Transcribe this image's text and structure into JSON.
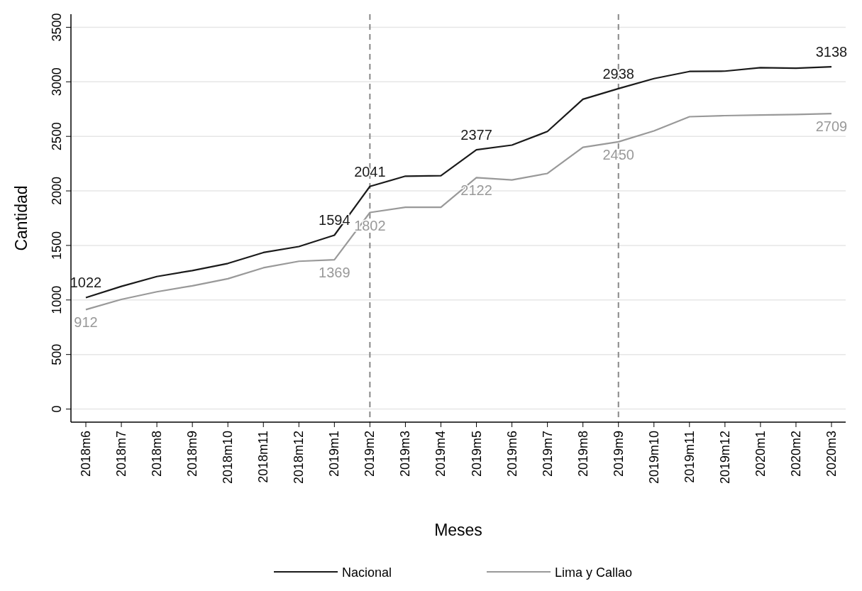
{
  "chart_data": {
    "type": "line",
    "xlabel": "Meses",
    "ylabel": "Cantidad",
    "categories": [
      "2018m6",
      "2018m7",
      "2018m8",
      "2018m9",
      "2018m10",
      "2018m11",
      "2018m12",
      "2019m1",
      "2019m2",
      "2019m3",
      "2019m4",
      "2019m5",
      "2019m6",
      "2019m7",
      "2019m8",
      "2019m9",
      "2019m10",
      "2019m11",
      "2019m12",
      "2020m1",
      "2020m2",
      "2020m3"
    ],
    "series": [
      {
        "name": "Nacional",
        "color": "#1a1a1a",
        "values": [
          1022,
          1125,
          1215,
          1270,
          1335,
          1435,
          1490,
          1594,
          2041,
          2135,
          2140,
          2377,
          2420,
          2545,
          2840,
          2938,
          3030,
          3095,
          3098,
          3130,
          3125,
          3138
        ],
        "value_labels": [
          "1022",
          null,
          null,
          null,
          null,
          null,
          null,
          "1594",
          "2041",
          null,
          null,
          "2377",
          null,
          null,
          null,
          "2938",
          null,
          null,
          null,
          null,
          null,
          "3138"
        ]
      },
      {
        "name": "Lima y Callao",
        "color": "#999999",
        "values": [
          912,
          1005,
          1075,
          1130,
          1195,
          1295,
          1355,
          1369,
          1802,
          1850,
          1850,
          2122,
          2100,
          2160,
          2400,
          2450,
          2550,
          2680,
          2690,
          2695,
          2700,
          2709
        ],
        "value_labels": [
          "912",
          null,
          null,
          null,
          null,
          null,
          null,
          "1369",
          "1802",
          null,
          null,
          "2122",
          null,
          null,
          null,
          "2450",
          null,
          null,
          null,
          null,
          null,
          "2709"
        ]
      }
    ],
    "ylim": [
      -120,
      3620
    ],
    "yticks": [
      0,
      500,
      1000,
      1500,
      2000,
      2500,
      3000,
      3500
    ],
    "grid": "y",
    "legend": "bottom",
    "line_style": "solid",
    "marker": "none",
    "ref_lines": [
      {
        "axis": "x",
        "value": "2019m2",
        "color": "#888888",
        "line_style": "dashed"
      },
      {
        "axis": "x",
        "value": "2019m9",
        "color": "#888888",
        "line_style": "dashed"
      }
    ]
  }
}
